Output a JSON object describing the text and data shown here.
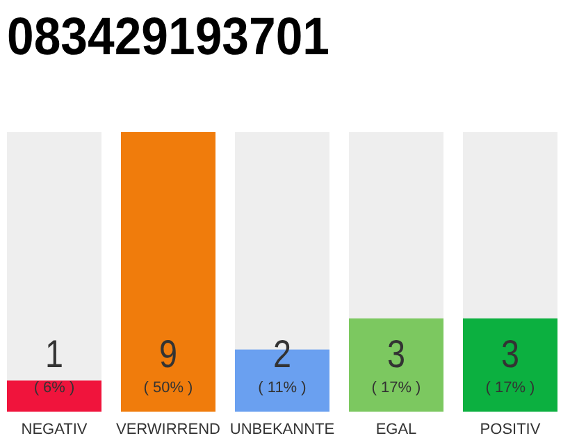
{
  "chart_data": {
    "type": "bar",
    "title": "083429193701",
    "categories": [
      "NEGATIV",
      "VERWIRREND",
      "UNBEKANNTE",
      "EGAL",
      "POSITIV"
    ],
    "values": [
      1,
      9,
      2,
      3,
      3
    ],
    "colors": [
      "#f0143c",
      "#f07c0c",
      "#6aa0f0",
      "#7cc860",
      "#0cb040"
    ],
    "data_labels": true,
    "annotations": [
      "( 6% )",
      "( 50% )",
      "( 11% )",
      "( 17% )",
      "( 17% )"
    ]
  }
}
